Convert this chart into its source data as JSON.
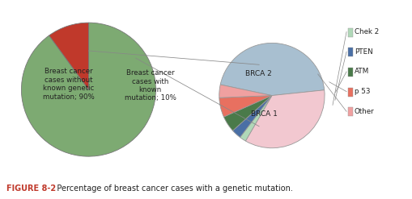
{
  "main_pie_values": [
    90,
    10
  ],
  "main_pie_colors": [
    "#7daa72",
    "#c0392b"
  ],
  "main_pie_startangle": 90,
  "main_label_90": "Breast cancer\ncases without\nknown genetic\nmutation; 90%",
  "main_label_10": "Breast cancer\ncases with\nknown\nmutation; 10%",
  "detail_values": [
    45,
    35,
    2,
    3,
    5,
    6,
    4
  ],
  "detail_colors": [
    "#a8bfd0",
    "#f2c8d0",
    "#b0d8b8",
    "#4a6fa5",
    "#4a7a4a",
    "#e87060",
    "#f0a0a0"
  ],
  "detail_labels": [
    "BRCA 1",
    "BRCA 2",
    "Chek 2",
    "PTEN",
    "ATM",
    "p 53",
    "Other"
  ],
  "detail_startangle": 168,
  "legend_labels": [
    "Chek 2",
    "PTEN",
    "ATM",
    "p 53",
    "Other"
  ],
  "legend_colors": [
    "#b0d8b8",
    "#4a6fa5",
    "#4a7a4a",
    "#e87060",
    "#f0a0a0"
  ],
  "figure_label": "FIGURE 8-2",
  "figure_caption": "   Percentage of breast cancer cases with a genetic mutation.",
  "bg_color": "#ffffff",
  "line_color": "#888888",
  "text_color": "#222222",
  "caption_label_color": "#c0392b"
}
